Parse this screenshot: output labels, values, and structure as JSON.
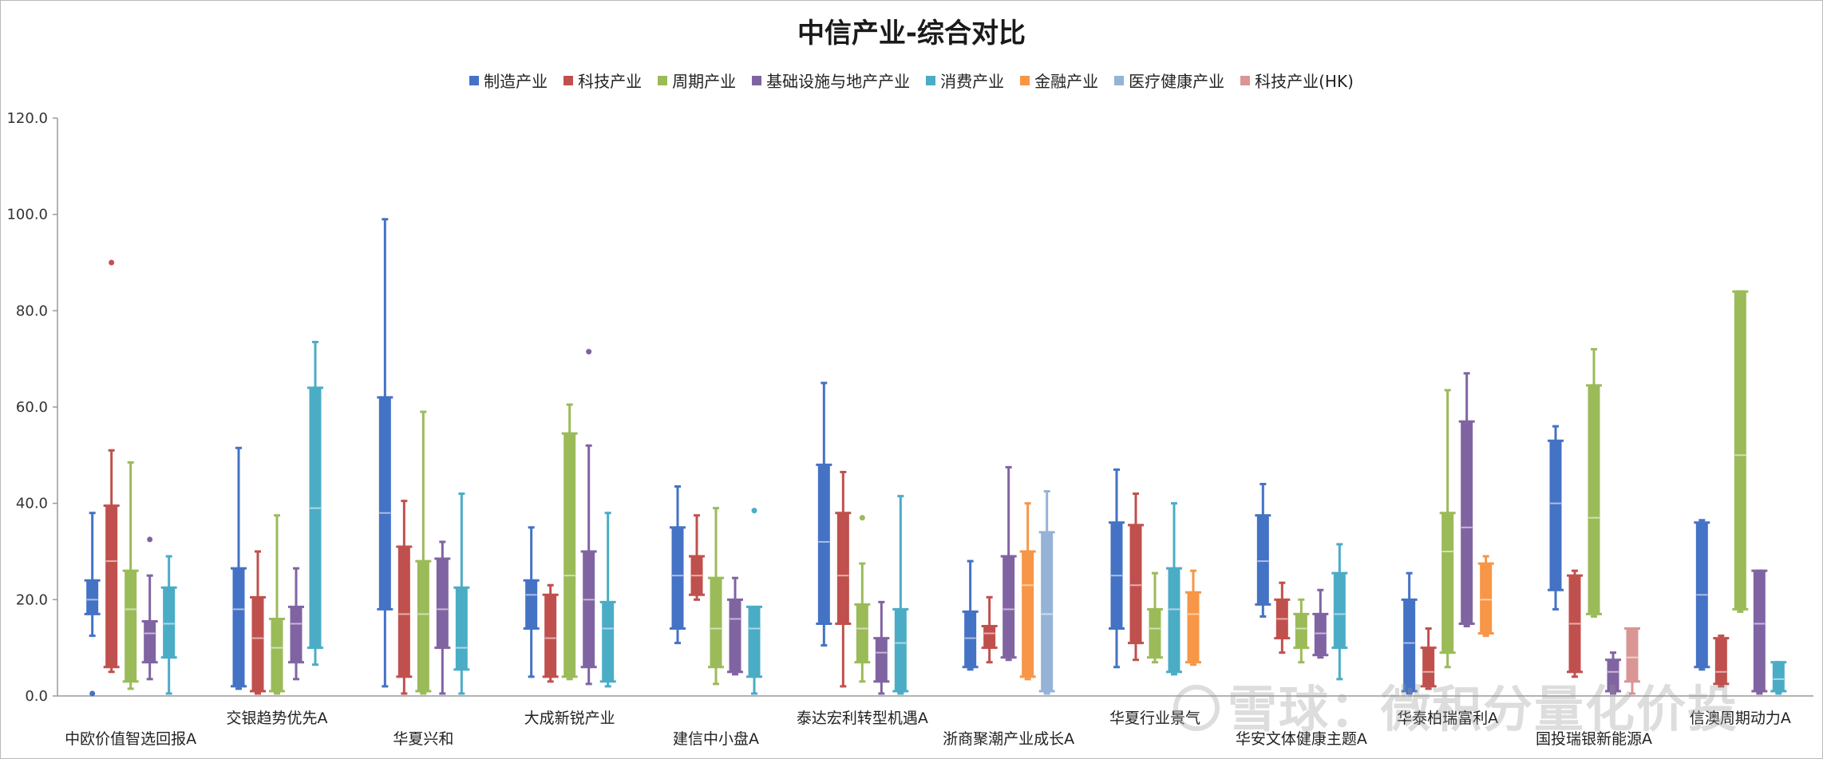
{
  "chart_data": {
    "type": "box",
    "title": "中信产业-综合对比",
    "xlabel": "",
    "ylabel": "",
    "ylim": [
      0,
      120
    ],
    "yticks": [
      "0.0",
      "20.0",
      "40.0",
      "60.0",
      "80.0",
      "100.0",
      "120.0"
    ],
    "grid": false,
    "legend_position": "top",
    "categories": [
      "中欧价值智选回报A",
      "交银趋势优先A",
      "华夏兴和",
      "大成新锐产业",
      "建信中小盘A",
      "泰达宏利转型机遇A",
      "浙商聚潮产业成长A",
      "华夏行业景气",
      "华安文体健康主题A",
      "华泰柏瑞富利A",
      "国投瑞银新能源A",
      "信澳周期动力A"
    ],
    "series": [
      {
        "name": "制造产业",
        "color": "#4472c4",
        "boxes": [
          [
            12.5,
            17,
            20,
            24,
            38
          ],
          [
            1.5,
            2,
            18,
            26.5,
            51.5
          ],
          [
            2,
            18,
            38,
            62,
            99
          ],
          [
            4,
            14,
            21,
            24,
            35
          ],
          [
            11,
            14,
            25,
            35,
            43.5
          ],
          [
            10.5,
            15,
            32,
            48,
            65
          ],
          [
            5.5,
            6,
            12,
            17.5,
            28
          ],
          [
            6,
            14,
            25,
            36,
            47
          ],
          [
            16.5,
            19,
            28,
            37.5,
            44
          ],
          [
            0.5,
            1,
            11,
            20,
            25.5
          ],
          [
            18,
            22,
            40,
            53,
            56
          ],
          [
            5.5,
            6,
            21,
            36,
            36.5
          ]
        ],
        "outliers": [
          [
            0.5
          ],
          [],
          [],
          [],
          [],
          [],
          [],
          [],
          [],
          [],
          [],
          []
        ]
      },
      {
        "name": "科技产业",
        "color": "#c0504d",
        "boxes": [
          [
            5,
            6,
            28,
            39.5,
            51
          ],
          [
            0.5,
            1,
            12,
            20.5,
            30
          ],
          [
            0.5,
            4,
            17,
            31,
            40.5
          ],
          [
            3,
            4,
            12,
            21,
            23
          ],
          [
            20,
            21,
            25,
            29,
            37.5
          ],
          [
            2,
            15,
            25,
            38,
            46.5
          ],
          [
            7,
            10,
            13,
            14.5,
            20.5
          ],
          [
            7.5,
            11,
            23,
            35.5,
            42
          ],
          [
            9,
            12,
            16,
            20,
            23.5
          ],
          [
            1.5,
            2,
            5,
            10,
            14
          ],
          [
            4,
            5,
            15,
            25,
            26
          ],
          [
            2,
            2.5,
            5,
            12,
            12.5
          ]
        ],
        "outliers": [
          [
            90
          ],
          [],
          [],
          [],
          [],
          [],
          [],
          [],
          [],
          [],
          [],
          []
        ]
      },
      {
        "name": "周期产业",
        "color": "#9bbb59",
        "boxes": [
          [
            1.5,
            3,
            18,
            26,
            48.5
          ],
          [
            0.5,
            1,
            10,
            16,
            37.5
          ],
          [
            0.5,
            1,
            17,
            28,
            59
          ],
          [
            3.5,
            4,
            25,
            54.5,
            60.5
          ],
          [
            2.5,
            6,
            14,
            24.5,
            39
          ],
          [
            3,
            7,
            14,
            19,
            27.5
          ],
          [],
          [
            7,
            8,
            14,
            18,
            25.5
          ],
          [
            7,
            10,
            14,
            17,
            20
          ],
          [
            6,
            9,
            30,
            38,
            63.5
          ],
          [
            16.5,
            17,
            37,
            64.5,
            72
          ],
          [
            17.5,
            18,
            50,
            84,
            84
          ]
        ],
        "outliers": [
          [],
          [],
          [],
          [],
          [],
          [
            37
          ],
          [],
          [],
          [],
          [],
          [],
          []
        ]
      },
      {
        "name": "基础设施与地产产业",
        "color": "#8064a2",
        "boxes": [
          [
            3.5,
            7,
            13,
            15.5,
            25
          ],
          [
            3.5,
            7,
            15,
            18.5,
            26.5
          ],
          [
            0.5,
            10,
            18,
            28.5,
            32
          ],
          [
            2.5,
            6,
            20,
            30,
            52
          ],
          [
            4.5,
            5,
            16,
            20,
            24.5
          ],
          [
            0.5,
            3,
            9,
            12,
            19.5
          ],
          [
            7.5,
            8,
            18,
            29,
            47.5
          ],
          [],
          [
            8,
            8.5,
            13,
            17,
            22
          ],
          [
            14.5,
            15,
            35,
            57,
            67
          ],
          [
            0.5,
            1,
            5,
            7.5,
            9
          ],
          [
            0.5,
            1,
            15,
            26,
            26
          ]
        ],
        "outliers": [
          [
            32.5
          ],
          [],
          [],
          [
            71.5
          ],
          [],
          [],
          [],
          [],
          [],
          [],
          [],
          []
        ]
      },
      {
        "name": "消费产业",
        "color": "#4bacc6",
        "boxes": [
          [
            0.5,
            8,
            15,
            22.5,
            29
          ],
          [
            6.5,
            10,
            39,
            64,
            73.5
          ],
          [
            0.5,
            5.5,
            10,
            22.5,
            42
          ],
          [
            2,
            3,
            14,
            19.5,
            38
          ],
          [
            0.5,
            4,
            14,
            18.5,
            18.5
          ],
          [
            0.5,
            1,
            11,
            18,
            41.5
          ],
          [],
          [
            4.5,
            5,
            18,
            26.5,
            40
          ],
          [
            3.5,
            10,
            17,
            25.5,
            31.5
          ],
          [],
          [],
          [
            0.5,
            1,
            3.5,
            7,
            7
          ]
        ],
        "outliers": [
          [],
          [],
          [],
          [],
          [
            38.5
          ],
          [],
          [],
          [],
          [],
          [],
          [],
          []
        ]
      },
      {
        "name": "金融产业",
        "color": "#f79646",
        "boxes": [
          [],
          [],
          [],
          [],
          [],
          [],
          [
            3.5,
            4,
            23,
            30,
            40
          ],
          [
            6.5,
            7,
            17,
            21.5,
            26
          ],
          [],
          [
            12.5,
            13,
            20,
            27.5,
            29
          ],
          [],
          []
        ],
        "outliers": [
          [],
          [],
          [],
          [],
          [],
          [],
          [],
          [],
          [],
          [],
          [],
          []
        ]
      },
      {
        "name": "医疗健康产业",
        "color": "#95b3d7",
        "boxes": [
          [],
          [],
          [],
          [],
          [],
          [],
          [
            0.5,
            1,
            17,
            34,
            42.5
          ],
          [],
          [],
          [],
          [],
          []
        ],
        "outliers": [
          [],
          [],
          [],
          [],
          [],
          [],
          [],
          [],
          [],
          [],
          [],
          []
        ]
      },
      {
        "name": "科技产业(HK)",
        "color": "#d99694",
        "boxes": [
          [],
          [],
          [],
          [],
          [],
          [],
          [],
          [],
          [],
          [],
          [
            0.5,
            3,
            8,
            14,
            14
          ],
          []
        ],
        "outliers": [
          [],
          [],
          [],
          [],
          [],
          [],
          [],
          [],
          [],
          [],
          [],
          []
        ]
      }
    ]
  },
  "watermark": {
    "text": "雪球：微积分量化价投"
  }
}
